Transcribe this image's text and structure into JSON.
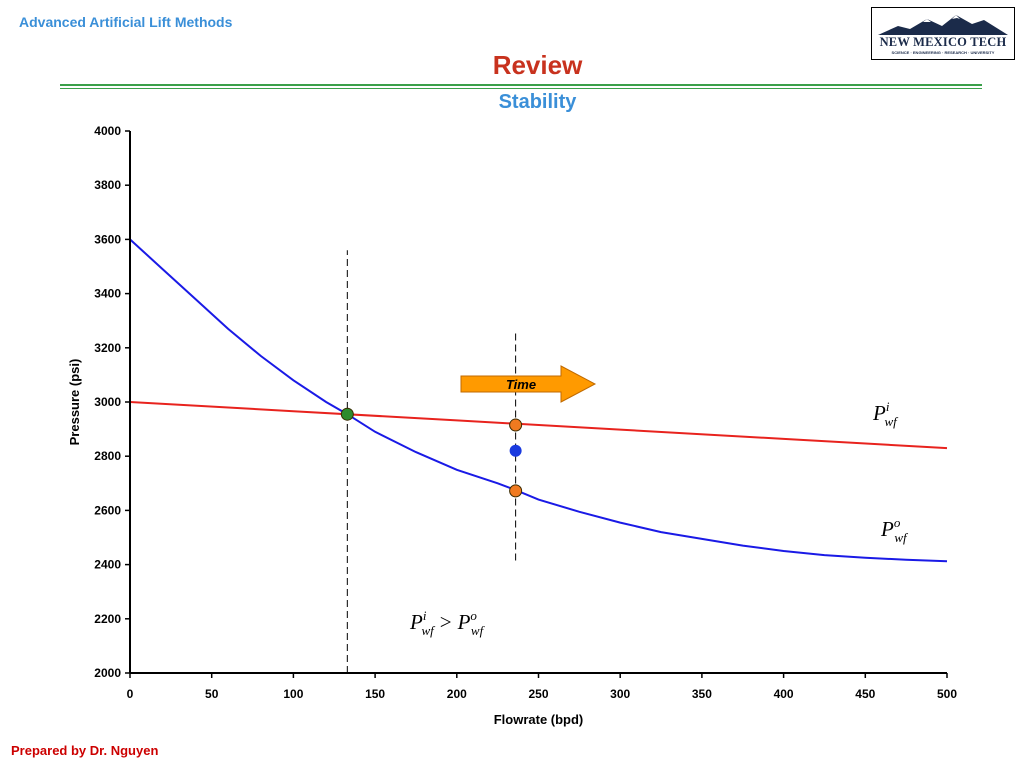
{
  "header": {
    "course": "Advanced Artificial Lift Methods",
    "logo_text": "NEW MEXICO TECH",
    "logo_sub": "SCIENCE · ENGINEERING · RESEARCH · UNIVERSITY"
  },
  "slide": {
    "title": "Review",
    "subtitle": "Stability",
    "footer": "Prepared by Dr. Nguyen"
  },
  "colors": {
    "inflow": "#e8231e",
    "outflow": "#1a1ae6",
    "equilibrium_point": "#2e8b2e",
    "state_point": "#f07a20",
    "transient_point": "#1a3adf",
    "arrow": "#ff9a00",
    "header_blue": "#3a8fd8",
    "title_red": "#c8321e",
    "rule_green": "#3ba04a"
  },
  "chart_data": {
    "type": "line",
    "xlabel": "Flowrate (bpd)",
    "ylabel": "Pressure (psi)",
    "xlim": [
      0,
      500
    ],
    "ylim": [
      2000,
      4000
    ],
    "xticks": [
      0,
      50,
      100,
      150,
      200,
      250,
      300,
      350,
      400,
      450,
      500
    ],
    "yticks": [
      2000,
      2200,
      2400,
      2600,
      2800,
      3000,
      3200,
      3400,
      3600,
      3800,
      4000
    ],
    "grid": false,
    "series": [
      {
        "key": "inflow",
        "x": [
          0,
          100,
          200,
          300,
          400,
          500
        ],
        "y": [
          3000,
          2966,
          2932,
          2898,
          2864,
          2830
        ]
      },
      {
        "key": "outflow",
        "x": [
          0,
          20,
          40,
          60,
          80,
          100,
          120,
          133,
          150,
          175,
          200,
          225,
          236,
          250,
          275,
          300,
          325,
          350,
          375,
          400,
          425,
          450,
          475,
          500
        ],
        "y": [
          3600,
          3490,
          3380,
          3270,
          3170,
          3080,
          3000,
          2955,
          2890,
          2815,
          2750,
          2700,
          2675,
          2640,
          2595,
          2555,
          2520,
          2495,
          2470,
          2450,
          2435,
          2425,
          2418,
          2412
        ]
      }
    ],
    "vlines": [
      {
        "x": 133,
        "y_from": 2000,
        "y_to": 3560
      },
      {
        "x": 236,
        "y_from": 2415,
        "y_to": 3255
      }
    ],
    "points": [
      {
        "key": "equilibrium",
        "x": 133,
        "y": 2955
      },
      {
        "key": "inflow_state",
        "x": 236,
        "y": 2915
      },
      {
        "key": "transient",
        "x": 236,
        "y": 2820
      },
      {
        "key": "outflow_state",
        "x": 236,
        "y": 2672
      }
    ],
    "annotations": {
      "arrow_label": "Time",
      "inflow_label": {
        "base": "P",
        "sup": "i",
        "sub": "wf"
      },
      "outflow_label": {
        "base": "P",
        "sup": "o",
        "sub": "wf"
      },
      "inequality": {
        "lhs_sup": "i",
        "rhs_sup": "o",
        "sub": "wf",
        "op": ">"
      }
    }
  }
}
